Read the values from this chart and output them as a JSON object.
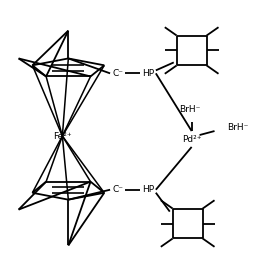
{
  "background_color": "#ffffff",
  "line_color": "#000000",
  "line_width": 1.3,
  "figsize": [
    2.55,
    2.78
  ],
  "dpi": 100,
  "labels": {
    "Fe": "Fe²⁺",
    "Pd": "Pd²⁺",
    "BrH1": "BrH⁻",
    "BrH2": "BrH⁻",
    "C_top": "C⁻",
    "C_bot": "C⁻",
    "HP_top": "HP",
    "HP_bot": "HP"
  },
  "font_size": 6.5
}
